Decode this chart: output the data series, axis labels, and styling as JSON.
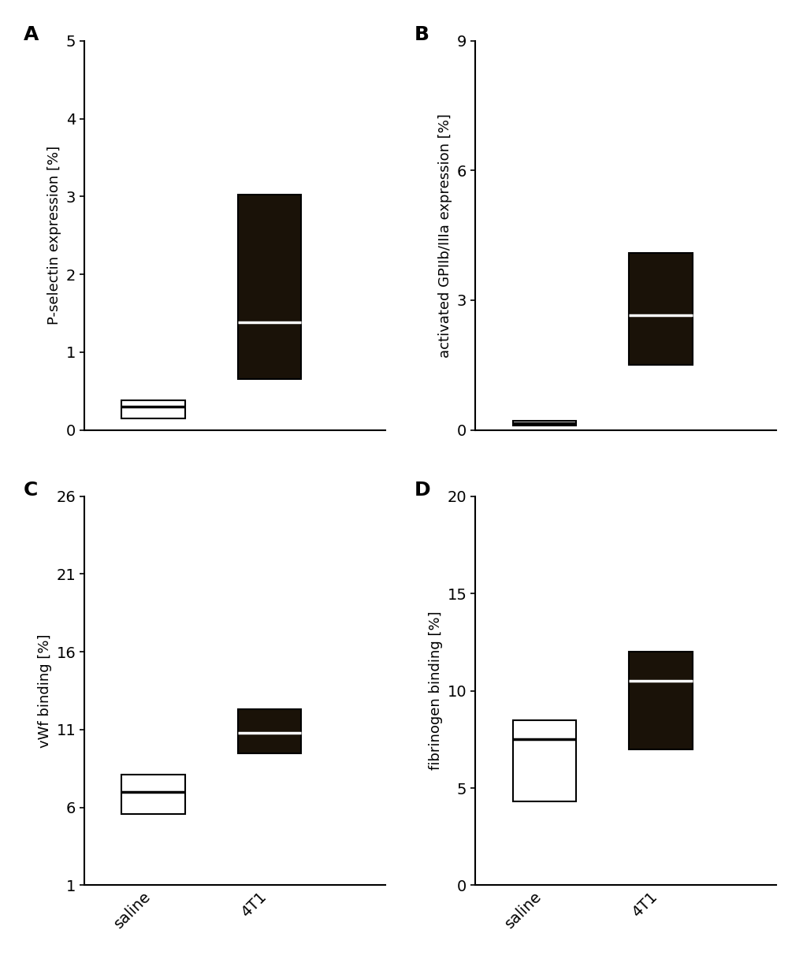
{
  "panels": [
    {
      "label": "A",
      "ylabel": "P-selectin expression [%]",
      "ylim": [
        0,
        5
      ],
      "yticks": [
        0,
        1,
        2,
        3,
        4,
        5
      ],
      "saline": {
        "q1": 0.15,
        "median": 0.3,
        "q3": 0.38
      },
      "t4t1": {
        "q1": 0.65,
        "median": 1.38,
        "q3": 3.02
      },
      "saline_color": "#ffffff",
      "t4t1_color": "#1a1208"
    },
    {
      "label": "B",
      "ylabel": "activated GPIIb/IIIa expression [%]",
      "ylim": [
        0,
        9
      ],
      "yticks": [
        0,
        3,
        6,
        9
      ],
      "saline": {
        "q1": 0.1,
        "median": 0.16,
        "q3": 0.22
      },
      "t4t1": {
        "q1": 1.5,
        "median": 2.65,
        "q3": 4.1
      },
      "saline_color": "#ffffff",
      "t4t1_color": "#1a1208"
    },
    {
      "label": "C",
      "ylabel": "vWf binding [%]",
      "ylim": [
        1,
        26
      ],
      "yticks": [
        1,
        6,
        11,
        16,
        21,
        26
      ],
      "saline": {
        "q1": 5.6,
        "median": 7.0,
        "q3": 8.1
      },
      "t4t1": {
        "q1": 9.5,
        "median": 10.8,
        "q3": 12.3
      },
      "saline_color": "#ffffff",
      "t4t1_color": "#1a1208"
    },
    {
      "label": "D",
      "ylabel": "fibrinogen binding [%]",
      "ylim": [
        0,
        20
      ],
      "yticks": [
        0,
        5,
        10,
        15,
        20
      ],
      "saline": {
        "q1": 4.3,
        "median": 7.5,
        "q3": 8.5
      },
      "t4t1": {
        "q1": 7.0,
        "median": 10.5,
        "q3": 12.0
      },
      "saline_color": "#ffffff",
      "t4t1_color": "#1a1208"
    }
  ],
  "categories": [
    "saline",
    "4T1"
  ],
  "x_saline": 1,
  "x_4t1": 2,
  "xlim": [
    0.4,
    3.0
  ],
  "box_width": 0.55,
  "linewidth": 1.5,
  "median_linewidth": 2.5,
  "tick_fontsize": 14,
  "ylabel_fontsize": 13,
  "panel_label_fontsize": 18,
  "background_color": "#ffffff",
  "box_edge_color": "#000000",
  "median_color_saline": "#000000",
  "median_color_t4t1": "#ffffff"
}
